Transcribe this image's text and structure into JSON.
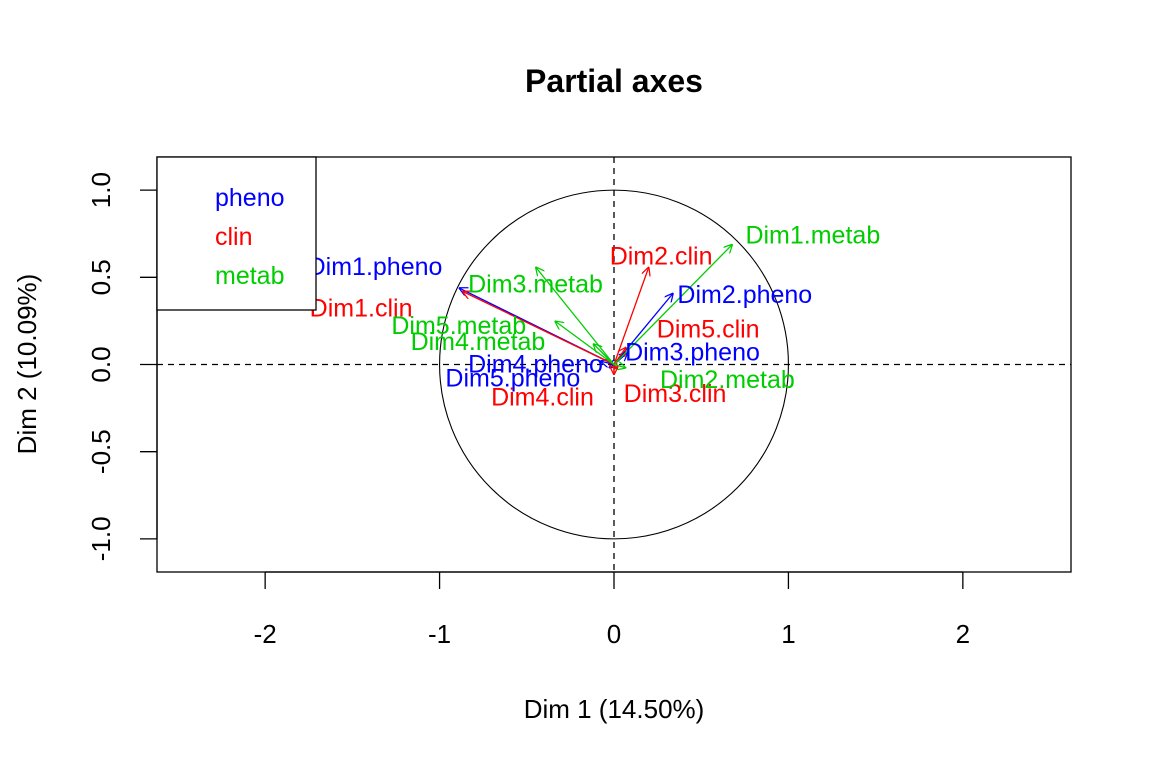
{
  "chart_data": {
    "type": "scatter",
    "title": "Partial axes",
    "xlabel": "Dim 1 (14.50%)",
    "ylabel": "Dim 2 (10.09%)",
    "xlim": [
      -2.62,
      2.62
    ],
    "ylim": [
      -1.19,
      1.19
    ],
    "x_ticks": [
      -2,
      -1,
      0,
      1,
      2
    ],
    "y_ticks": [
      -1.0,
      -0.5,
      0.0,
      0.5,
      1.0
    ],
    "x_tick_labels": [
      "-2",
      "-1",
      "0",
      "1",
      "2"
    ],
    "y_tick_labels": [
      "-1.0",
      "-0.5",
      "0.0",
      "0.5",
      "1.0"
    ],
    "unit_circle_radius": 1,
    "reference_lines": {
      "x": 0,
      "y": 0,
      "style": "dashed"
    },
    "legend": {
      "placement": "top-left",
      "entries": [
        {
          "name": "pheno",
          "color": "#0000ff"
        },
        {
          "name": "clin",
          "color": "#ff0000"
        },
        {
          "name": "metab",
          "color": "#00cd00"
        }
      ]
    },
    "series": [
      {
        "name": "pheno",
        "color": "#0000ff",
        "arrows": [
          {
            "label": "Dim1.pheno",
            "x": -0.89,
            "y": 0.44,
            "label_x": -1.37,
            "label_y": 0.56
          },
          {
            "label": "Dim2.pheno",
            "x": 0.34,
            "y": 0.41,
            "label_x": 0.75,
            "label_y": 0.4
          },
          {
            "label": "Dim3.pheno",
            "x": 0.08,
            "y": 0.07,
            "label_x": 0.45,
            "label_y": 0.07
          },
          {
            "label": "Dim4.pheno",
            "x": -0.08,
            "y": 0.02,
            "label_x": -0.45,
            "label_y": 0.0
          },
          {
            "label": "Dim5.pheno",
            "x": -0.03,
            "y": -0.02,
            "label_x": -0.58,
            "label_y": -0.08
          }
        ]
      },
      {
        "name": "clin",
        "color": "#ff0000",
        "arrows": [
          {
            "label": "Dim1.clin",
            "x": -0.87,
            "y": 0.42,
            "label_x": -1.45,
            "label_y": 0.32
          },
          {
            "label": "Dim2.clin",
            "x": 0.2,
            "y": 0.56,
            "label_x": 0.27,
            "label_y": 0.62
          },
          {
            "label": "Dim3.clin",
            "x": 0.02,
            "y": -0.03,
            "label_x": 0.35,
            "label_y": -0.17
          },
          {
            "label": "Dim4.clin",
            "x": 0.0,
            "y": -0.06,
            "label_x": -0.41,
            "label_y": -0.19
          },
          {
            "label": "Dim5.clin",
            "x": 0.07,
            "y": 0.1,
            "label_x": 0.54,
            "label_y": 0.2
          }
        ]
      },
      {
        "name": "metab",
        "color": "#00cd00",
        "arrows": [
          {
            "label": "Dim1.metab",
            "x": 0.68,
            "y": 0.69,
            "label_x": 1.14,
            "label_y": 0.74
          },
          {
            "label": "Dim2.metab",
            "x": 0.07,
            "y": -0.02,
            "label_x": 0.65,
            "label_y": -0.09
          },
          {
            "label": "Dim3.metab",
            "x": -0.45,
            "y": 0.56,
            "label_x": -0.45,
            "label_y": 0.46
          },
          {
            "label": "Dim4.metab",
            "x": -0.12,
            "y": 0.12,
            "label_x": -0.78,
            "label_y": 0.13
          },
          {
            "label": "Dim5.metab",
            "x": -0.34,
            "y": 0.25,
            "label_x": -0.89,
            "label_y": 0.22
          }
        ]
      }
    ]
  }
}
